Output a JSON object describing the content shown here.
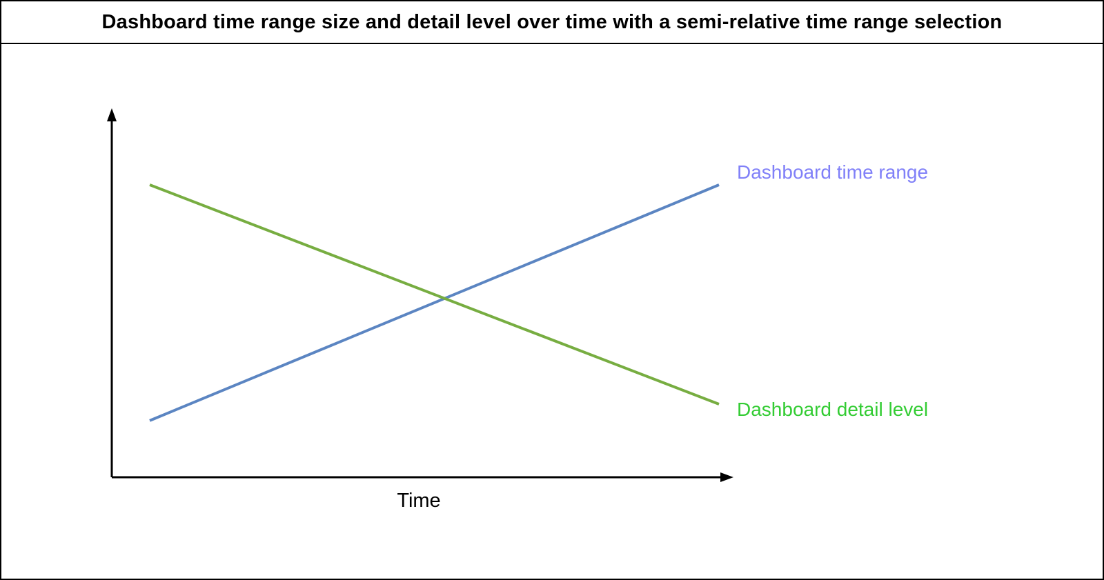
{
  "title": "Dashboard time range size and detail level over time with a semi-relative time range selection",
  "chart_data": {
    "type": "line",
    "title": "Dashboard time range size and detail level over time with a semi-relative time range selection",
    "xlabel": "Time",
    "ylabel": "",
    "axes": {
      "x_range": [
        0,
        1
      ],
      "y_range": [
        0,
        1
      ],
      "grid": false,
      "tick_labels": "none",
      "style": "conceptual axes with arrowheads"
    },
    "legend_position": "labels at right end of each line",
    "series": [
      {
        "name": "Dashboard time range",
        "color": "#5b85c2",
        "label_color": "#8080f8",
        "trend": "increasing",
        "x": [
          0,
          1
        ],
        "values": [
          0.155,
          0.8
        ]
      },
      {
        "name": "Dashboard detail level",
        "color": "#77ad41",
        "label_color": "#33cc33",
        "trend": "decreasing",
        "x": [
          0,
          1
        ],
        "values": [
          0.8,
          0.2
        ]
      }
    ]
  },
  "colors": {
    "border": "#000000",
    "background": "#ffffff",
    "axis": "#000000"
  }
}
